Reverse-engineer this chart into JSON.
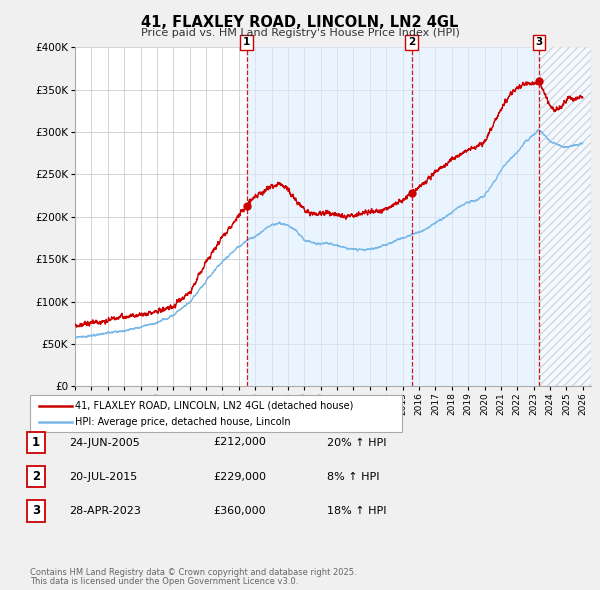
{
  "title": "41, FLAXLEY ROAD, LINCOLN, LN2 4GL",
  "subtitle": "Price paid vs. HM Land Registry's House Price Index (HPI)",
  "legend_line1": "41, FLAXLEY ROAD, LINCOLN, LN2 4GL (detached house)",
  "legend_line2": "HPI: Average price, detached house, Lincoln",
  "footer1": "Contains HM Land Registry data © Crown copyright and database right 2025.",
  "footer2": "This data is licensed under the Open Government Licence v3.0.",
  "transactions": [
    {
      "label": "1",
      "date": "24-JUN-2005",
      "price": "£212,000",
      "hpi": "20% ↑ HPI",
      "year": 2005.48
    },
    {
      "label": "2",
      "date": "20-JUL-2015",
      "price": "£229,000",
      "hpi": "8% ↑ HPI",
      "year": 2015.55
    },
    {
      "label": "3",
      "date": "28-APR-2023",
      "price": "£360,000",
      "hpi": "18% ↑ HPI",
      "year": 2023.32
    }
  ],
  "hpi_color": "#7ab8e8",
  "price_color": "#cc0000",
  "vline_color": "#cc0000",
  "bg_color": "#f0f0f0",
  "plot_bg": "#ffffff",
  "grid_color": "#cccccc",
  "shade_color": "#ddeeff",
  "ylim": [
    0,
    400000
  ],
  "yticks": [
    0,
    50000,
    100000,
    150000,
    200000,
    250000,
    300000,
    350000,
    400000
  ],
  "xlim_start": 1995,
  "xlim_end": 2026.5,
  "xticks": [
    1995,
    1996,
    1997,
    1998,
    1999,
    2000,
    2001,
    2002,
    2003,
    2004,
    2005,
    2006,
    2007,
    2008,
    2009,
    2010,
    2011,
    2012,
    2013,
    2014,
    2015,
    2016,
    2017,
    2018,
    2019,
    2020,
    2021,
    2022,
    2023,
    2024,
    2025,
    2026
  ]
}
